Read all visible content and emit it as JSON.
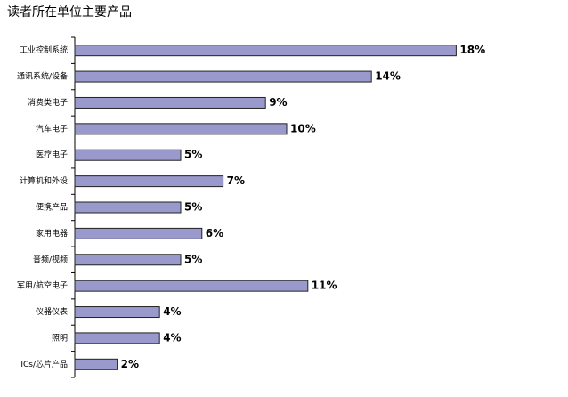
{
  "chart_data": {
    "type": "bar",
    "orientation": "horizontal",
    "title": "读者所在单位主要产品",
    "categories": [
      "工业控制系统",
      "通讯系统/设备",
      "消费类电子",
      "汽车电子",
      "医疗电子",
      "计算机和外设",
      "便携产品",
      "家用电器",
      "音频/视频",
      "军用/航空电子",
      "仪器仪表",
      "照明",
      "ICs/芯片产品"
    ],
    "values": [
      18,
      14,
      9,
      10,
      5,
      7,
      5,
      6,
      5,
      11,
      4,
      4,
      2
    ],
    "value_labels": [
      "18%",
      "14%",
      "9%",
      "10%",
      "5%",
      "7%",
      "5%",
      "6%",
      "5%",
      "11%",
      "4%",
      "4%",
      "2%"
    ],
    "color": "#9999cc"
  }
}
